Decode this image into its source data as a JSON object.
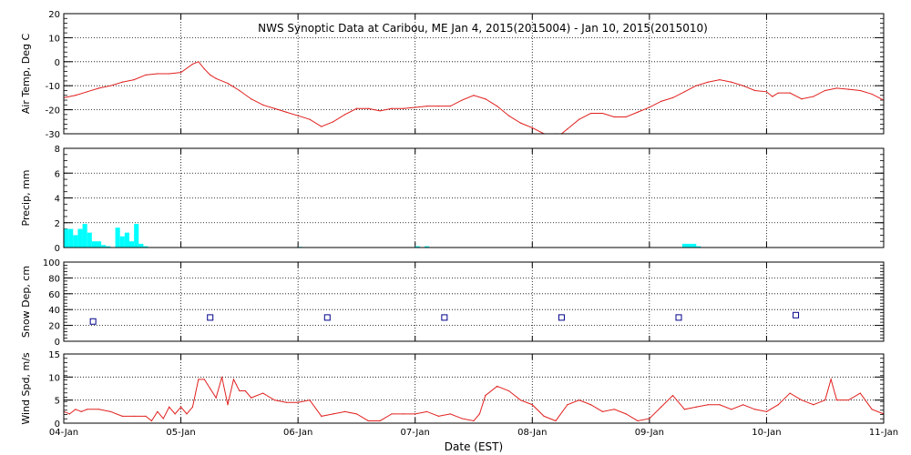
{
  "title": "NWS Synoptic Data at Caribou, ME   Jan  4, 2015(2015004) - Jan 10, 2015(2015010)",
  "xlabel": "Date (EST)",
  "x_ticks": [
    "04-Jan",
    "05-Jan",
    "06-Jan",
    "07-Jan",
    "08-Jan",
    "09-Jan",
    "10-Jan",
    "11-Jan"
  ],
  "colors": {
    "line": "#e0201e",
    "bar": "#00ffff",
    "marker": "#00008b",
    "frame": "#000000"
  },
  "chart_data": [
    {
      "type": "line",
      "ylabel": "Air Temp, Deg C",
      "ylim": [
        -30,
        20
      ],
      "yticks": [
        -30,
        -20,
        -10,
        0,
        10,
        20
      ],
      "x_unit": "days since 04-Jan",
      "x": [
        0.0,
        0.1,
        0.2,
        0.3,
        0.4,
        0.5,
        0.6,
        0.7,
        0.8,
        0.9,
        1.0,
        1.1,
        1.15,
        1.2,
        1.25,
        1.3,
        1.4,
        1.5,
        1.6,
        1.7,
        1.8,
        1.9,
        2.0,
        2.1,
        2.2,
        2.3,
        2.4,
        2.5,
        2.6,
        2.7,
        2.8,
        2.9,
        3.0,
        3.1,
        3.2,
        3.3,
        3.4,
        3.5,
        3.6,
        3.7,
        3.8,
        3.9,
        4.0,
        4.1,
        4.2,
        4.25,
        4.3,
        4.4,
        4.5,
        4.6,
        4.7,
        4.8,
        4.9,
        5.0,
        5.1,
        5.2,
        5.3,
        5.4,
        5.5,
        5.6,
        5.7,
        5.8,
        5.9,
        6.0,
        6.05,
        6.1,
        6.2,
        6.3,
        6.4,
        6.5,
        6.6,
        6.7,
        6.8,
        6.9,
        7.0
      ],
      "y": [
        -15,
        -14,
        -12.5,
        -11,
        -10,
        -8.5,
        -7.5,
        -5.5,
        -5,
        -5,
        -4.5,
        -1,
        0,
        -3,
        -5.5,
        -7,
        -9,
        -12,
        -15.5,
        -18,
        -19.5,
        -21,
        -22.5,
        -24,
        -27,
        -25,
        -22,
        -19.5,
        -19.5,
        -20.5,
        -19.5,
        -19.5,
        -19,
        -18.5,
        -18.5,
        -18.5,
        -16,
        -14,
        -15.5,
        -18.5,
        -22.5,
        -25.5,
        -27.5,
        -30,
        -31,
        -30,
        -28,
        -24,
        -21.5,
        -21.5,
        -23,
        -23,
        -21,
        -19,
        -16.5,
        -15,
        -12.5,
        -10,
        -8.5,
        -7.5,
        -8.5,
        -10,
        -12,
        -12.5,
        -14.5,
        -13,
        -13,
        -15.5,
        -14.5,
        -12,
        -11,
        -11.5,
        -12,
        -13.5,
        -16
      ]
    },
    {
      "type": "bar",
      "ylabel": "Precip, mm",
      "ylim": [
        0,
        8
      ],
      "yticks": [
        0,
        2,
        4,
        6,
        8
      ],
      "x_unit": "days since 04-Jan",
      "bar_width_days": 0.04,
      "x": [
        0.0,
        0.04,
        0.08,
        0.12,
        0.16,
        0.2,
        0.24,
        0.28,
        0.32,
        0.36,
        0.44,
        0.48,
        0.52,
        0.56,
        0.6,
        0.64,
        0.68,
        2.0,
        3.0,
        3.08,
        5.28,
        5.32,
        5.36,
        5.4
      ],
      "values": [
        1.5,
        1.5,
        1.0,
        1.5,
        1.9,
        1.2,
        0.5,
        0.5,
        0.2,
        0.1,
        1.6,
        0.9,
        1.2,
        0.5,
        1.9,
        0.3,
        0.1,
        0.05,
        0.1,
        0.1,
        0.3,
        0.3,
        0.3,
        0.1
      ]
    },
    {
      "type": "scatter",
      "ylabel": "Snow Dep, cm",
      "ylim": [
        0,
        100
      ],
      "yticks": [
        0,
        20,
        40,
        60,
        80,
        100
      ],
      "x_unit": "days since 04-Jan",
      "x": [
        0.25,
        1.25,
        2.25,
        3.25,
        4.25,
        5.25,
        6.25
      ],
      "y": [
        25,
        30,
        30,
        30,
        30,
        30,
        33
      ]
    },
    {
      "type": "line",
      "ylabel": "Wind Spd, m/s",
      "ylim": [
        0,
        15
      ],
      "yticks": [
        0,
        5,
        10,
        15
      ],
      "x_unit": "days since 04-Jan",
      "x": [
        0.0,
        0.05,
        0.1,
        0.15,
        0.2,
        0.3,
        0.4,
        0.5,
        0.6,
        0.7,
        0.75,
        0.8,
        0.85,
        0.9,
        0.95,
        1.0,
        1.05,
        1.1,
        1.15,
        1.2,
        1.25,
        1.3,
        1.35,
        1.4,
        1.45,
        1.5,
        1.55,
        1.6,
        1.7,
        1.8,
        1.9,
        2.0,
        2.1,
        2.2,
        2.3,
        2.4,
        2.5,
        2.6,
        2.7,
        2.8,
        2.9,
        3.0,
        3.1,
        3.2,
        3.3,
        3.4,
        3.5,
        3.55,
        3.6,
        3.7,
        3.8,
        3.9,
        4.0,
        4.1,
        4.2,
        4.3,
        4.4,
        4.5,
        4.6,
        4.7,
        4.8,
        4.9,
        5.0,
        5.1,
        5.2,
        5.3,
        5.4,
        5.5,
        5.6,
        5.7,
        5.8,
        5.9,
        6.0,
        6.1,
        6.2,
        6.3,
        6.4,
        6.5,
        6.55,
        6.6,
        6.7,
        6.8,
        6.9,
        7.0
      ],
      "y": [
        2.5,
        2,
        3,
        2.5,
        3,
        3,
        2.5,
        1.5,
        1.5,
        1.5,
        0.5,
        2.5,
        1,
        3.5,
        2,
        3.5,
        2,
        3.5,
        9.5,
        9.5,
        7.5,
        5.5,
        10,
        4,
        9.5,
        7,
        7,
        5.5,
        6.5,
        5,
        4.5,
        4.5,
        5,
        1.5,
        2,
        2.5,
        2,
        0.5,
        0.5,
        2,
        2,
        2,
        2.5,
        1.5,
        2,
        1,
        0.5,
        2,
        6,
        8,
        7,
        5,
        4,
        1.5,
        0.5,
        4,
        5,
        4,
        2.5,
        3,
        2,
        0.5,
        1,
        3.5,
        6,
        3,
        3.5,
        4,
        4,
        3,
        4,
        3,
        2.5,
        4,
        6.5,
        5,
        4,
        5,
        9.5,
        5,
        5,
        6.5,
        3,
        2
      ]
    }
  ]
}
